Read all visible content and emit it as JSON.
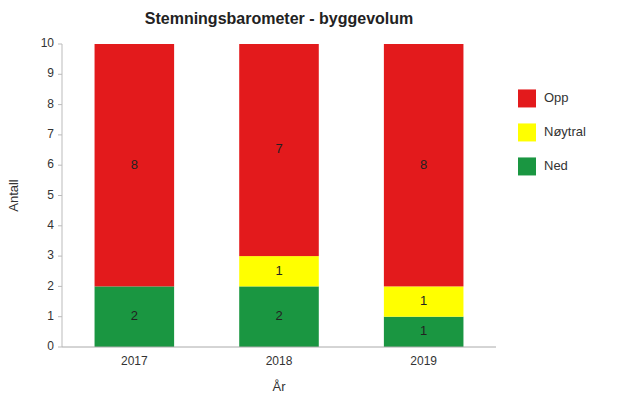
{
  "chart_data": {
    "type": "bar",
    "stacked": true,
    "title": "Stemningsbarometer - byggevolum",
    "xlabel": "År",
    "ylabel": "Antall",
    "categories": [
      "2017",
      "2018",
      "2019"
    ],
    "series": [
      {
        "name": "Ned",
        "color": "#1a9641",
        "values": [
          2,
          2,
          1
        ]
      },
      {
        "name": "Nøytral",
        "color": "#ffff00",
        "values": [
          0,
          1,
          1
        ]
      },
      {
        "name": "Opp",
        "color": "#e31a1c",
        "values": [
          8,
          7,
          8
        ]
      }
    ],
    "ylim": [
      0,
      10
    ],
    "yticks": [
      0,
      1,
      2,
      3,
      4,
      5,
      6,
      7,
      8,
      9,
      10
    ],
    "grid": false,
    "legend": "right",
    "data_labels": true
  }
}
